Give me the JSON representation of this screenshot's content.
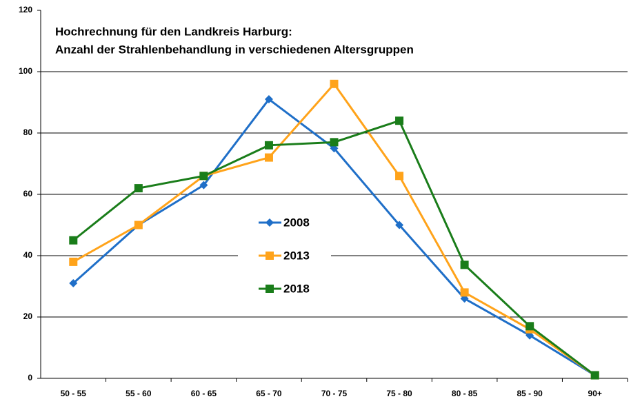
{
  "chart_data": {
    "type": "line",
    "title": [
      "Hochrechnung für den Landkreis Harburg:",
      "Anzahl der Strahlenbehandlung in verschiedenen Altersgruppen"
    ],
    "categories": [
      "50 - 55",
      "55 - 60",
      "60 - 65",
      "65 - 70",
      "70 - 75",
      "75 - 80",
      "80 - 85",
      "85 - 90",
      "90+"
    ],
    "series": [
      {
        "name": "2008",
        "color": "#1f6fc8",
        "marker": "diamond",
        "values": [
          31,
          50,
          63,
          91,
          75,
          50,
          26,
          14,
          1
        ]
      },
      {
        "name": "2013",
        "color": "#ffa31a",
        "marker": "square",
        "values": [
          38,
          50,
          66,
          72,
          96,
          66,
          28,
          16,
          1
        ]
      },
      {
        "name": "2018",
        "color": "#1a7d1a",
        "marker": "square",
        "values": [
          45,
          62,
          66,
          76,
          77,
          84,
          37,
          17,
          1
        ]
      }
    ],
    "ylim": [
      0,
      120
    ],
    "yticks": [
      0,
      20,
      40,
      60,
      80,
      100,
      120
    ],
    "grid": true
  }
}
